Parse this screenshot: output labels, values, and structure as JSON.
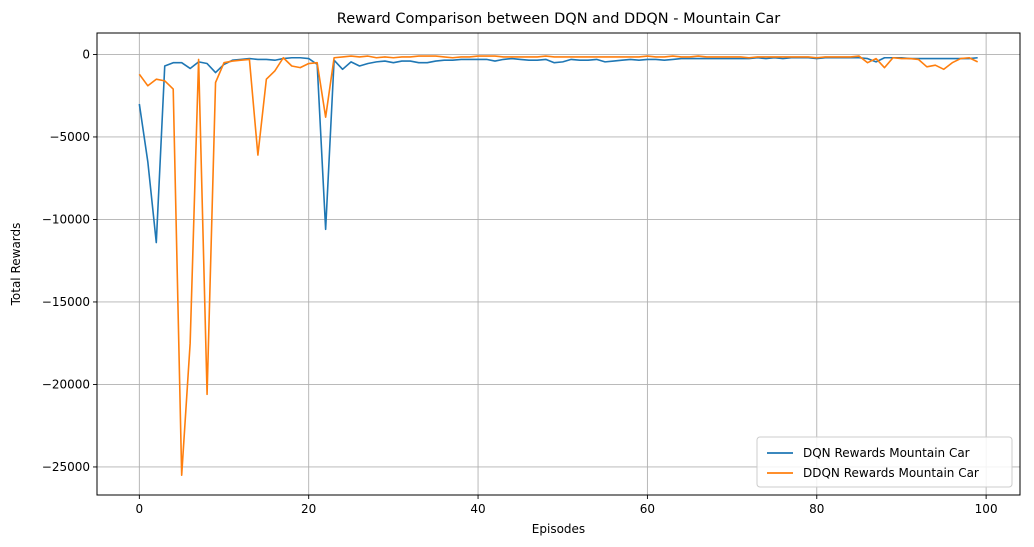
{
  "chart_data": {
    "type": "line",
    "title": "Reward Comparison between DQN and DDQN - Mountain Car",
    "xlabel": "Episodes",
    "ylabel": "Total Rewards",
    "xlim": [
      -5,
      104
    ],
    "ylim": [
      -26700,
      1300
    ],
    "xticks": [
      0,
      20,
      40,
      60,
      80,
      100
    ],
    "yticks": [
      0,
      -5000,
      -10000,
      -15000,
      -20000,
      -25000
    ],
    "grid": true,
    "legend_position": "lower-right",
    "x": [
      0,
      1,
      2,
      3,
      4,
      5,
      6,
      7,
      8,
      9,
      10,
      11,
      12,
      13,
      14,
      15,
      16,
      17,
      18,
      19,
      20,
      21,
      22,
      23,
      24,
      25,
      26,
      27,
      28,
      29,
      30,
      31,
      32,
      33,
      34,
      35,
      36,
      37,
      38,
      39,
      40,
      41,
      42,
      43,
      44,
      45,
      46,
      47,
      48,
      49,
      50,
      51,
      52,
      53,
      54,
      55,
      56,
      57,
      58,
      59,
      60,
      61,
      62,
      63,
      64,
      65,
      66,
      67,
      68,
      69,
      70,
      71,
      72,
      73,
      74,
      75,
      76,
      77,
      78,
      79,
      80,
      81,
      82,
      83,
      84,
      85,
      86,
      87,
      88,
      89,
      90,
      91,
      92,
      93,
      94,
      95,
      96,
      97,
      98,
      99
    ],
    "series": [
      {
        "name": "DQN Rewards Mountain Car",
        "color": "#1f77b4",
        "values": [
          -3000,
          -6500,
          -11400,
          -700,
          -500,
          -500,
          -850,
          -450,
          -550,
          -1100,
          -600,
          -350,
          -300,
          -250,
          -300,
          -300,
          -350,
          -250,
          -200,
          -200,
          -250,
          -600,
          -10600,
          -350,
          -900,
          -450,
          -700,
          -550,
          -450,
          -400,
          -500,
          -400,
          -400,
          -500,
          -500,
          -400,
          -350,
          -350,
          -300,
          -300,
          -300,
          -300,
          -400,
          -300,
          -250,
          -300,
          -350,
          -350,
          -300,
          -500,
          -450,
          -300,
          -350,
          -350,
          -300,
          -450,
          -400,
          -350,
          -300,
          -350,
          -300,
          -300,
          -350,
          -300,
          -250,
          -250,
          -250,
          -250,
          -250,
          -250,
          -250,
          -250,
          -250,
          -200,
          -250,
          -200,
          -250,
          -200,
          -200,
          -200,
          -250,
          -200,
          -200,
          -200,
          -200,
          -200,
          -250,
          -450,
          -200,
          -200,
          -200,
          -250,
          -250,
          -250,
          -250,
          -250,
          -250,
          -250,
          -250,
          -200
        ]
      },
      {
        "name": "DDQN Rewards Mountain Car",
        "color": "#ff7f0e",
        "values": [
          -1200,
          -1900,
          -1500,
          -1600,
          -2100,
          -25500,
          -17500,
          -300,
          -20600,
          -1700,
          -500,
          -400,
          -350,
          -300,
          -6100,
          -1500,
          -1000,
          -200,
          -700,
          -800,
          -550,
          -500,
          -3800,
          -200,
          -150,
          -100,
          -150,
          -100,
          -200,
          -150,
          -200,
          -150,
          -150,
          -100,
          -100,
          -100,
          -150,
          -200,
          -150,
          -150,
          -100,
          -100,
          -100,
          -150,
          -150,
          -150,
          -150,
          -150,
          -100,
          -150,
          -150,
          -150,
          -150,
          -150,
          -150,
          -150,
          -150,
          -150,
          -150,
          -150,
          -100,
          -150,
          -150,
          -100,
          -150,
          -150,
          -100,
          -150,
          -150,
          -150,
          -150,
          -150,
          -200,
          -150,
          -150,
          -150,
          -150,
          -150,
          -150,
          -150,
          -200,
          -150,
          -150,
          -150,
          -150,
          -100,
          -500,
          -250,
          -800,
          -200,
          -250,
          -250,
          -300,
          -750,
          -650,
          -900,
          -500,
          -250,
          -200,
          -450
        ]
      }
    ]
  }
}
